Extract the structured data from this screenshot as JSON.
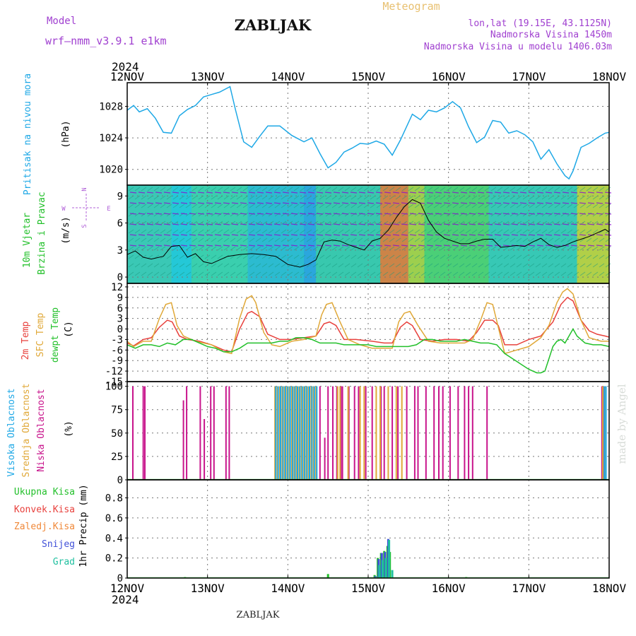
{
  "header": {
    "model_label": "Model",
    "model_name": "wrf–nmm_v3.9.1  e1km",
    "station": "ZABLJAK",
    "meteogram": "Meteogram",
    "lonlat": "lon,lat (19.15E, 43.1125N)",
    "elevation": "Nadmorska Visina 1450m",
    "model_elevation": "Nadmorska Visina u modelu 1406.03m",
    "year_top": "2024",
    "year_bottom": "2024",
    "footer_station": "ZABLJAK",
    "credit": "made by Angel"
  },
  "colors": {
    "pressure": "#1ea8e6",
    "temp2m": "#e8403c",
    "sfc": "#e0a838",
    "dewpt": "#22c02a",
    "cloud_high": "#1ea8e6",
    "cloud_mid": "#e0a838",
    "cloud_low": "#c8148c",
    "precip_total": "#22c02a",
    "snow": "#4050d8",
    "grad": "#20c0a0",
    "wind_purple": "#8a10d0"
  },
  "panel_labels": {
    "pressure": [
      "Pritisak na nivou mora",
      "(hPa)"
    ],
    "wind": [
      "10m Vjetar",
      "Brzina i Pravac",
      "(m/s)"
    ],
    "compass": [
      "N",
      "S",
      "W",
      "E"
    ],
    "temp": [
      "2m Temp",
      "SFC Temp",
      "dewpt Temp",
      "(C)"
    ],
    "cloud": [
      "Visoka Oblacnost",
      "Srednja Oblacnost",
      "Niska Oblacnost",
      "(%)"
    ],
    "precip_y": "1hr Precip (mm)",
    "precip_legend": [
      "Ukupna Kisa",
      "Konvek.Kisa",
      "Zaledj.Kisa",
      "Snijeg",
      "Grad"
    ]
  },
  "chart_data": [
    {
      "type": "line",
      "name": "pressure",
      "x_categories": [
        "12NOV",
        "13NOV",
        "14NOV",
        "15NOV",
        "16NOV",
        "17NOV",
        "18NOV"
      ],
      "xlim_days": [
        12,
        18
      ],
      "ylabel": "(hPa)",
      "ylim": [
        1018,
        1031
      ],
      "yticks": [
        1020,
        1024,
        1028
      ],
      "series": [
        {
          "name": "Pritisak na nivou mora",
          "x": [
            12.0,
            12.08,
            12.15,
            12.25,
            12.35,
            12.45,
            12.55,
            12.65,
            12.75,
            12.85,
            12.95,
            13.05,
            13.15,
            13.28,
            13.35,
            13.45,
            13.55,
            13.65,
            13.75,
            13.9,
            14.05,
            14.2,
            14.3,
            14.4,
            14.5,
            14.6,
            14.7,
            14.8,
            14.9,
            15.0,
            15.1,
            15.2,
            15.3,
            15.4,
            15.55,
            15.65,
            15.75,
            15.85,
            15.95,
            16.05,
            16.15,
            16.25,
            16.35,
            16.45,
            16.55,
            16.65,
            16.75,
            16.85,
            16.95,
            17.05,
            17.15,
            17.25,
            17.35,
            17.45,
            17.5,
            17.55,
            17.65,
            17.75,
            17.85,
            17.95,
            18.0
          ],
          "y": [
            1027.5,
            1028.1,
            1027.3,
            1027.7,
            1026.5,
            1024.7,
            1024.6,
            1026.8,
            1027.6,
            1028.1,
            1029.2,
            1029.5,
            1029.8,
            1030.5,
            1027.5,
            1023.5,
            1022.8,
            1024.2,
            1025.5,
            1025.5,
            1024.3,
            1023.5,
            1024.0,
            1022.0,
            1020.2,
            1020.9,
            1022.2,
            1022.7,
            1023.3,
            1023.2,
            1023.6,
            1023.2,
            1021.8,
            1023.7,
            1027.0,
            1026.3,
            1027.5,
            1027.3,
            1027.8,
            1028.6,
            1027.8,
            1025.4,
            1023.4,
            1024.1,
            1026.2,
            1026.0,
            1024.6,
            1024.9,
            1024.4,
            1023.5,
            1021.3,
            1022.5,
            1020.7,
            1019.2,
            1018.8,
            1019.8,
            1022.8,
            1023.3,
            1024.0,
            1024.6,
            1024.7
          ]
        }
      ]
    },
    {
      "type": "line",
      "name": "wind",
      "ylabel": "(m/s)",
      "ylim": [
        -0.7,
        10.2
      ],
      "yticks": [
        0,
        3,
        6,
        9
      ],
      "series": [
        {
          "name": "10m Vjetar",
          "x": [
            12.0,
            12.1,
            12.2,
            12.3,
            12.45,
            12.55,
            12.65,
            12.75,
            12.85,
            12.95,
            13.05,
            13.15,
            13.25,
            13.4,
            13.55,
            13.7,
            13.85,
            14.0,
            14.15,
            14.25,
            14.35,
            14.45,
            14.55,
            14.65,
            14.75,
            14.85,
            14.95,
            15.05,
            15.15,
            15.25,
            15.35,
            15.45,
            15.55,
            15.65,
            15.75,
            15.85,
            15.95,
            16.05,
            16.15,
            16.25,
            16.35,
            16.45,
            16.55,
            16.65,
            16.75,
            16.85,
            16.95,
            17.05,
            17.15,
            17.25,
            17.35,
            17.45,
            17.55,
            17.65,
            17.75,
            17.85,
            17.95,
            18.0
          ],
          "y": [
            2.5,
            2.9,
            2.2,
            2.0,
            2.3,
            3.4,
            3.5,
            2.2,
            2.6,
            1.7,
            1.5,
            1.9,
            2.3,
            2.5,
            2.6,
            2.5,
            2.3,
            1.4,
            1.1,
            1.4,
            1.9,
            3.9,
            4.1,
            4.0,
            3.6,
            3.3,
            3.0,
            4.0,
            4.3,
            5.2,
            6.6,
            7.8,
            8.6,
            8.2,
            6.3,
            5.0,
            4.3,
            4.0,
            3.7,
            3.7,
            4.0,
            4.2,
            4.2,
            3.3,
            3.4,
            3.5,
            3.4,
            3.9,
            4.3,
            3.6,
            3.3,
            3.5,
            3.9,
            4.2,
            4.5,
            4.9,
            5.3,
            5.0
          ]
        }
      ]
    },
    {
      "type": "line",
      "name": "temperature",
      "ylabel": "(C)",
      "ylim": [
        -15,
        13
      ],
      "yticks": [
        -15,
        -12,
        -9,
        -6,
        -3,
        0,
        3,
        6,
        9,
        12
      ],
      "series": [
        {
          "name": "2m Temp",
          "x": [
            12.0,
            12.08,
            12.2,
            12.3,
            12.4,
            12.5,
            12.56,
            12.65,
            12.75,
            12.9,
            13.05,
            13.2,
            13.3,
            13.4,
            13.5,
            13.55,
            13.65,
            13.75,
            13.9,
            14.05,
            14.2,
            14.35,
            14.45,
            14.52,
            14.6,
            14.7,
            14.85,
            15.05,
            15.2,
            15.3,
            15.4,
            15.48,
            15.55,
            15.65,
            15.8,
            15.95,
            16.1,
            16.25,
            16.35,
            16.45,
            16.55,
            16.62,
            16.7,
            16.85,
            17.0,
            17.15,
            17.3,
            17.4,
            17.48,
            17.55,
            17.65,
            17.75,
            17.85,
            17.95,
            18.0
          ],
          "y": [
            -4.0,
            -4.8,
            -3.0,
            -2.5,
            0.5,
            2.5,
            2.0,
            -2.0,
            -3.0,
            -3.5,
            -4.5,
            -6.0,
            -6.5,
            0.0,
            4.5,
            5.0,
            3.5,
            -1.5,
            -3.0,
            -3.0,
            -2.5,
            -2.0,
            1.5,
            2.0,
            1.0,
            -3.0,
            -3.0,
            -3.5,
            -4.0,
            -4.0,
            0.5,
            2.0,
            1.0,
            -3.0,
            -3.5,
            -3.0,
            -3.0,
            -3.5,
            -1.0,
            2.5,
            2.5,
            1.0,
            -4.5,
            -4.5,
            -3.0,
            -2.0,
            2.0,
            7.0,
            9.0,
            8.0,
            2.5,
            -0.5,
            -1.5,
            -2.0,
            -2.3
          ]
        },
        {
          "name": "SFC Temp",
          "x": [
            12.0,
            12.08,
            12.2,
            12.3,
            12.4,
            12.48,
            12.55,
            12.62,
            12.7,
            12.85,
            13.05,
            13.2,
            13.3,
            13.4,
            13.48,
            13.55,
            13.6,
            13.7,
            13.8,
            13.9,
            14.05,
            14.2,
            14.35,
            14.42,
            14.48,
            14.55,
            14.65,
            14.75,
            14.9,
            15.05,
            15.2,
            15.3,
            15.38,
            15.45,
            15.52,
            15.62,
            15.75,
            15.9,
            16.05,
            16.2,
            16.3,
            16.4,
            16.48,
            16.55,
            16.62,
            16.7,
            16.85,
            17.0,
            17.15,
            17.25,
            17.35,
            17.42,
            17.48,
            17.55,
            17.65,
            17.75,
            17.9,
            18.0
          ],
          "y": [
            -3.5,
            -5.0,
            -3.5,
            -3.5,
            3.0,
            7.0,
            7.5,
            1.0,
            -2.0,
            -3.5,
            -4.5,
            -6.5,
            -7.0,
            3.0,
            8.5,
            9.5,
            7.5,
            -1.0,
            -4.5,
            -5.0,
            -3.5,
            -3.0,
            -2.0,
            4.0,
            7.0,
            7.5,
            2.0,
            -3.0,
            -4.5,
            -5.5,
            -5.5,
            -5.5,
            2.0,
            4.5,
            5.0,
            1.0,
            -3.5,
            -4.0,
            -4.0,
            -4.0,
            -3.0,
            2.5,
            7.5,
            7.0,
            0.5,
            -7.0,
            -6.0,
            -5.0,
            -2.5,
            1.0,
            7.5,
            10.5,
            11.5,
            10.0,
            2.5,
            -2.5,
            -3.5,
            -3.5
          ]
        },
        {
          "name": "dewpt Temp",
          "x": [
            12.0,
            12.1,
            12.2,
            12.3,
            12.4,
            12.5,
            12.6,
            12.7,
            12.8,
            12.9,
            13.0,
            13.1,
            13.2,
            13.3,
            13.4,
            13.5,
            13.6,
            13.7,
            13.8,
            13.9,
            14.0,
            14.1,
            14.2,
            14.3,
            14.4,
            14.5,
            14.6,
            14.7,
            14.8,
            14.9,
            15.0,
            15.1,
            15.2,
            15.3,
            15.4,
            15.5,
            15.6,
            15.7,
            15.8,
            15.9,
            16.0,
            16.1,
            16.2,
            16.3,
            16.4,
            16.5,
            16.6,
            16.7,
            16.8,
            16.9,
            17.0,
            17.1,
            17.15,
            17.2,
            17.3,
            17.35,
            17.4,
            17.45,
            17.5,
            17.55,
            17.6,
            17.7,
            17.8,
            17.9,
            18.0
          ],
          "y": [
            -4.5,
            -5.5,
            -4.5,
            -4.5,
            -5.0,
            -4.0,
            -4.5,
            -3.0,
            -3.0,
            -4.0,
            -5.0,
            -5.5,
            -6.5,
            -6.5,
            -5.5,
            -4.0,
            -4.0,
            -4.0,
            -4.0,
            -3.5,
            -3.5,
            -2.5,
            -2.5,
            -3.0,
            -4.0,
            -4.0,
            -4.0,
            -4.5,
            -4.5,
            -4.5,
            -4.5,
            -5.0,
            -5.0,
            -5.0,
            -5.0,
            -5.0,
            -4.5,
            -3.0,
            -3.0,
            -3.5,
            -3.5,
            -3.5,
            -3.0,
            -3.5,
            -4.0,
            -4.0,
            -4.5,
            -7.0,
            -8.5,
            -10.0,
            -11.5,
            -12.5,
            -12.5,
            -12.0,
            -5.0,
            -3.5,
            -3.0,
            -4.0,
            -2.0,
            0.0,
            -2.0,
            -4.0,
            -4.5,
            -4.5,
            -5.0
          ]
        }
      ]
    },
    {
      "type": "bar",
      "name": "cloud",
      "ylabel": "(%)",
      "ylim": [
        0,
        105
      ],
      "yticks": [
        0,
        25,
        50,
        75,
        100
      ],
      "series": [
        {
          "name": "Niska Oblacnost",
          "x": [
            12.07,
            12.2,
            12.22,
            12.7,
            12.74,
            12.91,
            12.96,
            13.04,
            13.08,
            13.23,
            13.27,
            14.4,
            14.46,
            14.5,
            14.56,
            14.61,
            14.66,
            14.68,
            14.76,
            14.83,
            14.88,
            14.97,
            15.05,
            15.16,
            15.2,
            15.3,
            15.37,
            15.48,
            15.58,
            15.62,
            15.72,
            15.82,
            15.88,
            15.93,
            16.02,
            16.12,
            16.2,
            16.25,
            16.3,
            16.48,
            17.91,
            17.93
          ],
          "y": [
            100,
            100,
            100,
            85,
            100,
            100,
            65,
            100,
            100,
            100,
            100,
            100,
            45,
            100,
            100,
            100,
            100,
            100,
            100,
            100,
            100,
            100,
            100,
            100,
            100,
            100,
            100,
            100,
            100,
            100,
            100,
            100,
            100,
            100,
            100,
            100,
            100,
            100,
            100,
            100,
            100,
            100
          ]
        },
        {
          "name": "Srednja Oblacnost",
          "x": [
            13.84,
            13.87,
            13.9,
            13.93,
            13.96,
            13.99,
            14.02,
            14.05,
            14.08,
            14.11,
            14.14,
            14.17,
            14.2,
            14.23,
            14.26,
            14.29,
            14.32,
            14.35,
            14.62,
            14.65,
            14.75,
            14.9,
            14.95,
            15.1,
            15.15,
            15.25,
            15.35,
            15.42,
            17.92,
            17.95
          ],
          "y": [
            100,
            100,
            100,
            100,
            100,
            100,
            100,
            100,
            100,
            100,
            100,
            100,
            100,
            100,
            100,
            100,
            100,
            100,
            100,
            100,
            100,
            100,
            100,
            100,
            100,
            100,
            100,
            100,
            100,
            100
          ]
        },
        {
          "name": "Visoka Oblacnost",
          "x": [
            13.85,
            13.88,
            13.91,
            13.94,
            13.97,
            14.0,
            14.03,
            14.06,
            14.09,
            14.12,
            14.15,
            14.18,
            14.21,
            14.24,
            14.27,
            14.3,
            14.33,
            14.36,
            17.94,
            17.96
          ],
          "y": [
            100,
            100,
            100,
            100,
            100,
            100,
            100,
            100,
            100,
            100,
            100,
            100,
            100,
            100,
            100,
            100,
            100,
            100,
            100,
            100
          ]
        }
      ]
    },
    {
      "type": "bar",
      "name": "precip",
      "ylabel": "1hr Precip (mm)",
      "ylim": [
        0,
        0.98
      ],
      "yticks": [
        0,
        0.2,
        0.4,
        0.6,
        0.8
      ],
      "series": [
        {
          "name": "Ukupna Kisa",
          "x": [
            12.72,
            14.5,
            15.08,
            15.12,
            15.16,
            15.2,
            15.24,
            15.27,
            16.22
          ],
          "y": [
            0.01,
            0.04,
            0.03,
            0.2,
            0.25,
            0.27,
            0.32,
            0.26,
            0.01
          ]
        },
        {
          "name": "Snijeg",
          "x": [
            15.09,
            15.13,
            15.17,
            15.21,
            15.25
          ],
          "y": [
            0.02,
            0.19,
            0.25,
            0.26,
            0.39
          ]
        },
        {
          "name": "Grad",
          "x": [
            15.1,
            15.14,
            15.18,
            15.22,
            15.26,
            15.3
          ],
          "y": [
            0.01,
            0.13,
            0.18,
            0.2,
            0.38,
            0.08
          ]
        }
      ]
    }
  ]
}
